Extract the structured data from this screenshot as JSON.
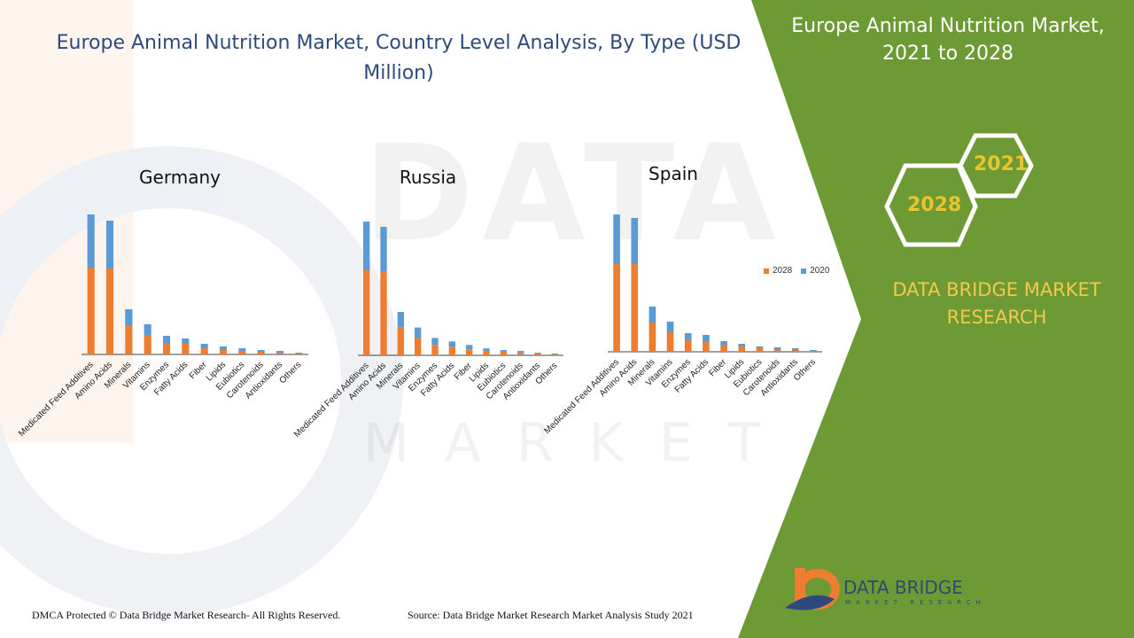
{
  "title": "Europe Animal Nutrition Market, Country Level Analysis, By Type (USD Million)",
  "panel": {
    "title": "Europe Animal Nutrition Market, 2021 to 2028",
    "hex_year_a": "2021",
    "hex_year_b": "2028",
    "brand": "DATA BRIDGE MARKET RESEARCH"
  },
  "footer": {
    "dmca": "DMCA Protected © Data Bridge Market Research- All Rights Reserved.",
    "source": "Source: Data Bridge Market Research Market Analysis Study 2021"
  },
  "logo": {
    "name": "DATA BRIDGE",
    "tagline": "MARKET RESEARCH"
  },
  "legend": {
    "a": "2028",
    "b": "2020"
  },
  "colors": {
    "s2028": "#ed7d31",
    "s2020": "#5b9bd5",
    "panel": "#6e9a35",
    "axis": "#404040"
  },
  "chart_data": [
    {
      "type": "bar",
      "title": "Germany",
      "categories": [
        "Medicated Feed Additives",
        "Amino Acids",
        "Minerals",
        "Vitamins",
        "Enzymes",
        "Fatty Acids",
        "Fiber",
        "Lipids",
        "Eubiotics",
        "Carotenoids",
        "Antioxidants",
        "Others"
      ],
      "series": [
        {
          "name": "2028",
          "values": [
            98,
            97,
            32,
            22,
            13,
            12,
            7,
            5,
            4,
            3,
            2,
            1
          ]
        },
        {
          "name": "2020",
          "values": [
            60,
            54,
            19,
            12,
            8,
            6,
            5,
            4,
            3,
            2,
            2,
            1
          ]
        }
      ],
      "stacked": true
    },
    {
      "type": "bar",
      "title": "Russia",
      "categories": [
        "Medicated Feed Additives",
        "Amino Acids",
        "Minerals",
        "Vitamins",
        "Enzymes",
        "Fatty Acids",
        "Fiber",
        "Lipids",
        "Eubiotics",
        "Carotenoids",
        "Antioxidants",
        "Others"
      ],
      "series": [
        {
          "name": "2028",
          "values": [
            98,
            97,
            32,
            20,
            12,
            10,
            7,
            5,
            4,
            3,
            2,
            1
          ]
        },
        {
          "name": "2020",
          "values": [
            56,
            51,
            18,
            12,
            8,
            6,
            5,
            3,
            2,
            2,
            1,
            1
          ]
        }
      ],
      "stacked": true
    },
    {
      "type": "bar",
      "title": "Spain",
      "categories": [
        "Medicated Feed Additives",
        "Amino Acids",
        "Minerals",
        "Vitamins",
        "Enzymes",
        "Fatty Acids",
        "Fiber",
        "Lipids",
        "Eubiotics",
        "Carotenoids",
        "Antioxidants",
        "Others"
      ],
      "series": [
        {
          "name": "2028",
          "values": [
            99,
            99,
            33,
            22,
            13,
            12,
            8,
            6,
            4,
            3,
            2,
            1
          ]
        },
        {
          "name": "2020",
          "values": [
            56,
            52,
            18,
            12,
            8,
            7,
            4,
            3,
            2,
            2,
            2,
            1
          ]
        }
      ],
      "stacked": true
    }
  ]
}
